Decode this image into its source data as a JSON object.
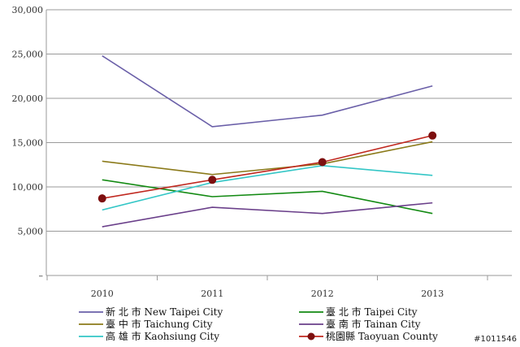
{
  "chart_data": {
    "type": "line",
    "categories": [
      "2010",
      "2011",
      "2012",
      "2013"
    ],
    "ylim": [
      0,
      30000
    ],
    "yticks": [
      "–",
      "5,000",
      "10,000",
      "15,000",
      "20,000",
      "25,000",
      "30,000"
    ],
    "ytick_values": [
      0,
      5000,
      10000,
      15000,
      20000,
      25000,
      30000
    ],
    "grid": true,
    "legend_position": "bottom",
    "series": [
      {
        "name": "新 北 市 New Taipei City",
        "values": [
          24800,
          16800,
          18100,
          21400
        ],
        "color": "#6a5fa8",
        "marker": false
      },
      {
        "name": "臺 北 市 Taipei City",
        "values": [
          10800,
          8900,
          9500,
          7000
        ],
        "color": "#138a13",
        "marker": false
      },
      {
        "name": "臺 中 市 Taichung City",
        "values": [
          12900,
          11400,
          12600,
          15100
        ],
        "color": "#8b7a1a",
        "marker": false
      },
      {
        "name": "臺 南 市 Tainan City",
        "values": [
          5500,
          7700,
          7000,
          8200
        ],
        "color": "#6a3f8a",
        "marker": false
      },
      {
        "name": "高 雄 市 Kaohsiung City",
        "values": [
          7400,
          10500,
          12400,
          11300
        ],
        "color": "#33c6c6",
        "marker": false
      },
      {
        "name": "桃園縣 Taoyuan County",
        "values": [
          8700,
          10800,
          12800,
          15800
        ],
        "color": "#c0281f",
        "marker": true
      }
    ]
  },
  "watermark": "#1011546"
}
